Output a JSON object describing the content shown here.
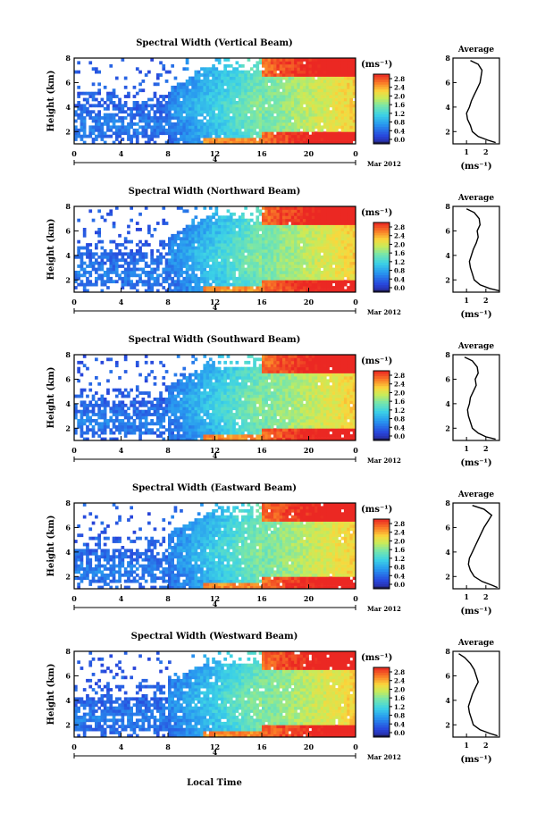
{
  "global": {
    "xlabel": "Local Time",
    "date_label": "4",
    "date_suffix": "Mar 2012",
    "x_ticks": [
      "0",
      "4",
      "8",
      "12",
      "16",
      "20",
      "0"
    ],
    "y_ticks": [
      "2",
      "4",
      "6",
      "8"
    ],
    "ylabel": "Height (km)",
    "colorbar_unit": "(ms⁻¹)",
    "avg_title": "Average",
    "avg_unit": "(ms⁻¹)"
  },
  "chart_data": [
    {
      "type": "heatmap",
      "title": "Spectral Width (Vertical Beam)",
      "xlabel": "Local Time",
      "ylabel": "Height (km)",
      "xlim": [
        0,
        24
      ],
      "ylim": [
        1,
        8
      ],
      "colorbar": {
        "ticks": [
          "0.0",
          "0.4",
          "0.8",
          "1.2",
          "1.6",
          "2.0",
          "2.4",
          "2.8"
        ],
        "range": [
          0,
          2.8
        ],
        "unit": "(ms⁻¹)"
      },
      "average_profile": {
        "title": "Average",
        "x_ticks": [
          "1",
          "2"
        ],
        "xlim": [
          0.3,
          2.7
        ],
        "unit": "(ms⁻¹)",
        "y_ticks": [
          "2",
          "4",
          "6",
          "8"
        ],
        "points": [
          [
            2.5,
            1.1
          ],
          [
            2.1,
            1.3
          ],
          [
            1.6,
            1.6
          ],
          [
            1.3,
            2.0
          ],
          [
            1.2,
            2.5
          ],
          [
            1.05,
            3.0
          ],
          [
            1.0,
            3.5
          ],
          [
            1.15,
            4.0
          ],
          [
            1.25,
            4.5
          ],
          [
            1.4,
            5.0
          ],
          [
            1.55,
            5.5
          ],
          [
            1.7,
            6.0
          ],
          [
            1.75,
            6.5
          ],
          [
            1.8,
            7.0
          ],
          [
            1.6,
            7.5
          ],
          [
            1.2,
            7.8
          ]
        ]
      }
    },
    {
      "type": "heatmap",
      "title": "Spectral Width (Northward Beam)",
      "xlabel": "Local Time",
      "ylabel": "Height (km)",
      "xlim": [
        0,
        24
      ],
      "ylim": [
        1,
        8
      ],
      "colorbar": {
        "ticks": [
          "0.0",
          "0.4",
          "0.8",
          "1.2",
          "1.6",
          "2.0",
          "2.4",
          "2.8"
        ],
        "range": [
          0,
          2.8
        ],
        "unit": "(ms⁻¹)"
      },
      "average_profile": {
        "title": "Average",
        "x_ticks": [
          "1",
          "2"
        ],
        "xlim": [
          0.3,
          2.7
        ],
        "unit": "(ms⁻¹)",
        "y_ticks": [
          "2",
          "4",
          "6",
          "8"
        ],
        "points": [
          [
            2.7,
            1.1
          ],
          [
            2.2,
            1.3
          ],
          [
            1.7,
            1.6
          ],
          [
            1.4,
            2.0
          ],
          [
            1.3,
            2.5
          ],
          [
            1.2,
            3.0
          ],
          [
            1.15,
            3.5
          ],
          [
            1.25,
            4.0
          ],
          [
            1.35,
            4.5
          ],
          [
            1.5,
            5.0
          ],
          [
            1.6,
            5.5
          ],
          [
            1.55,
            6.0
          ],
          [
            1.7,
            6.5
          ],
          [
            1.65,
            7.0
          ],
          [
            1.4,
            7.5
          ],
          [
            1.0,
            7.8
          ]
        ]
      }
    },
    {
      "type": "heatmap",
      "title": "Spectral Width (Southward Beam)",
      "xlabel": "Local Time",
      "ylabel": "Height (km)",
      "xlim": [
        0,
        24
      ],
      "ylim": [
        1,
        8
      ],
      "colorbar": {
        "ticks": [
          "0.0",
          "0.4",
          "0.8",
          "1.2",
          "1.6",
          "2.0",
          "2.4",
          "2.8"
        ],
        "range": [
          0,
          2.8
        ],
        "unit": "(ms⁻¹)"
      },
      "average_profile": {
        "title": "Average",
        "x_ticks": [
          "1",
          "2"
        ],
        "xlim": [
          0.3,
          2.7
        ],
        "unit": "(ms⁻¹)",
        "y_ticks": [
          "2",
          "4",
          "6",
          "8"
        ],
        "points": [
          [
            2.5,
            1.1
          ],
          [
            2.0,
            1.3
          ],
          [
            1.6,
            1.6
          ],
          [
            1.3,
            2.0
          ],
          [
            1.2,
            2.5
          ],
          [
            1.1,
            3.0
          ],
          [
            1.05,
            3.5
          ],
          [
            1.15,
            4.0
          ],
          [
            1.2,
            4.5
          ],
          [
            1.35,
            5.0
          ],
          [
            1.5,
            5.5
          ],
          [
            1.45,
            6.0
          ],
          [
            1.6,
            6.5
          ],
          [
            1.55,
            7.0
          ],
          [
            1.3,
            7.5
          ],
          [
            0.9,
            7.8
          ]
        ]
      }
    },
    {
      "type": "heatmap",
      "title": "Spectral Width (Eastward Beam)",
      "xlabel": "Local Time",
      "ylabel": "Height (km)",
      "xlim": [
        0,
        24
      ],
      "ylim": [
        1,
        8
      ],
      "colorbar": {
        "ticks": [
          "0.0",
          "0.4",
          "0.8",
          "1.2",
          "1.6",
          "2.0",
          "2.4",
          "2.8"
        ],
        "range": [
          0,
          2.8
        ],
        "unit": "(ms⁻¹)"
      },
      "average_profile": {
        "title": "Average",
        "x_ticks": [
          "1",
          "2"
        ],
        "xlim": [
          0.3,
          2.7
        ],
        "unit": "(ms⁻¹)",
        "y_ticks": [
          "2",
          "4",
          "6",
          "8"
        ],
        "points": [
          [
            2.6,
            1.1
          ],
          [
            2.3,
            1.3
          ],
          [
            1.8,
            1.6
          ],
          [
            1.4,
            2.0
          ],
          [
            1.2,
            2.5
          ],
          [
            1.1,
            3.0
          ],
          [
            1.15,
            3.5
          ],
          [
            1.3,
            4.0
          ],
          [
            1.45,
            4.5
          ],
          [
            1.6,
            5.0
          ],
          [
            1.75,
            5.5
          ],
          [
            1.9,
            6.0
          ],
          [
            2.1,
            6.5
          ],
          [
            2.3,
            7.0
          ],
          [
            1.9,
            7.5
          ],
          [
            1.3,
            7.8
          ]
        ]
      }
    },
    {
      "type": "heatmap",
      "title": "Spectral Width (Westward Beam)",
      "xlabel": "Local Time",
      "ylabel": "Height (km)",
      "xlim": [
        0,
        24
      ],
      "ylim": [
        1,
        8
      ],
      "colorbar": {
        "ticks": [
          "0.0",
          "0.4",
          "0.8",
          "1.2",
          "1.6",
          "2.0",
          "2.4",
          "2.8"
        ],
        "range": [
          0,
          2.8
        ],
        "unit": "(ms⁻¹)"
      },
      "average_profile": {
        "title": "Average",
        "x_ticks": [
          "1",
          "2"
        ],
        "xlim": [
          0.3,
          2.7
        ],
        "unit": "(ms⁻¹)",
        "y_ticks": [
          "2",
          "4",
          "6",
          "8"
        ],
        "points": [
          [
            2.6,
            1.1
          ],
          [
            2.2,
            1.3
          ],
          [
            1.7,
            1.6
          ],
          [
            1.35,
            2.0
          ],
          [
            1.25,
            2.5
          ],
          [
            1.15,
            3.0
          ],
          [
            1.1,
            3.5
          ],
          [
            1.2,
            4.0
          ],
          [
            1.3,
            4.5
          ],
          [
            1.45,
            5.0
          ],
          [
            1.6,
            5.5
          ],
          [
            1.5,
            6.0
          ],
          [
            1.4,
            6.5
          ],
          [
            1.2,
            7.0
          ],
          [
            0.9,
            7.5
          ],
          [
            0.6,
            7.8
          ]
        ]
      }
    }
  ]
}
